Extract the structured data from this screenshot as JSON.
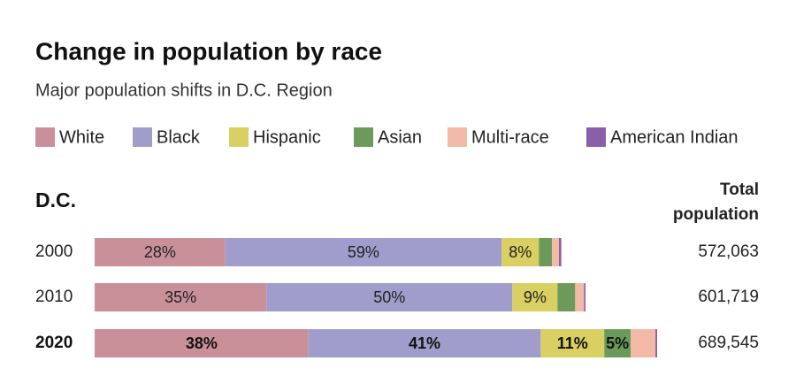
{
  "chart_data": {
    "type": "stacked-bar",
    "title": "Change in population by race",
    "subtitle": "Major population shifts in D.C. Region",
    "group_label": "D.C.",
    "total_header": [
      "Total",
      "population"
    ],
    "categories": [
      "2000",
      "2010",
      "2020"
    ],
    "totals": [
      {
        "value": 572063,
        "label": "572,063"
      },
      {
        "value": 601719,
        "label": "601,719"
      },
      {
        "value": 689545,
        "label": "689,545"
      }
    ],
    "series": [
      {
        "name": "White",
        "color": "#c9909a",
        "values": [
          28,
          35,
          38
        ],
        "value_labels": [
          "28%",
          "35%",
          "38%"
        ]
      },
      {
        "name": "Black",
        "color": "#a09ccb",
        "values": [
          59.2,
          50.1,
          41.3
        ],
        "value_labels": [
          "59%",
          "50%",
          "41%"
        ]
      },
      {
        "name": "Hispanic",
        "color": "#d9cf62",
        "values": [
          8,
          9.2,
          11.3
        ],
        "value_labels": [
          "8%",
          "9%",
          "11%"
        ]
      },
      {
        "name": "Asian",
        "color": "#6c9a5a",
        "values": [
          2.8,
          3.6,
          4.7
        ],
        "value_labels": [
          null,
          null,
          "5%"
        ]
      },
      {
        "name": "Multi-race",
        "color": "#f2b9a6",
        "values": [
          1.5,
          1.8,
          4.4
        ]
      },
      {
        "name": "American Indian",
        "color": "#8a5fa8",
        "values": [
          0.5,
          0.3,
          0.3
        ]
      }
    ]
  }
}
